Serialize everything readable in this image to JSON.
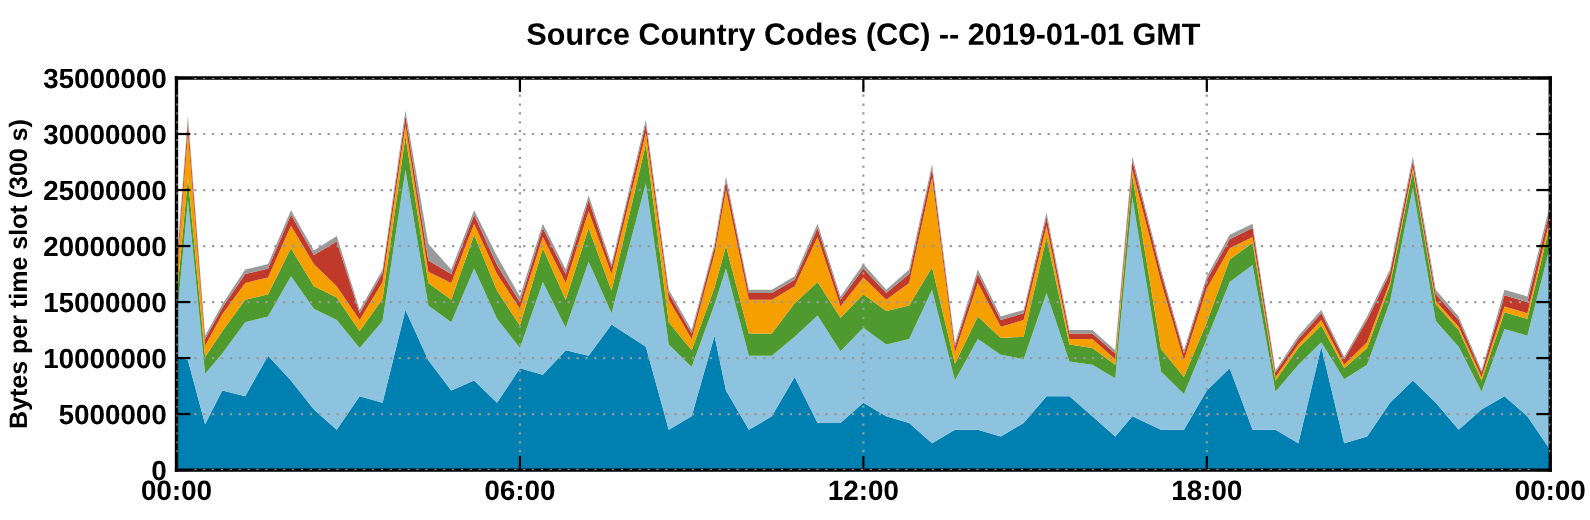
{
  "chart_data": {
    "type": "area",
    "stacked": true,
    "title": "Source Country Codes (CC) -- 2019-01-01 GMT",
    "ylabel": "Bytes per time slot (300 s)",
    "x": [
      0,
      0.2,
      0.5,
      0.8,
      1.2,
      1.6,
      2.0,
      2.4,
      2.8,
      3.2,
      3.6,
      4.0,
      4.4,
      4.8,
      5.2,
      5.6,
      6.0,
      6.4,
      6.8,
      7.2,
      7.6,
      8.2,
      8.6,
      9.0,
      9.4,
      9.6,
      10.0,
      10.4,
      10.8,
      11.2,
      11.6,
      12.0,
      12.4,
      12.8,
      13.2,
      13.6,
      14.0,
      14.4,
      14.8,
      15.2,
      15.6,
      16.0,
      16.4,
      16.7,
      17.2,
      17.6,
      18.0,
      18.4,
      18.8,
      19.2,
      19.6,
      20.0,
      20.4,
      20.8,
      21.2,
      21.6,
      22.0,
      22.4,
      22.8,
      23.2,
      23.6,
      24.0
    ],
    "series": [
      {
        "color": "#0080b0",
        "values": [
          10200000.0,
          9800000.0,
          4100000.0,
          7100000.0,
          6600000.0,
          10200000.0,
          8000000.0,
          5400000.0,
          3600000.0,
          6600000.0,
          6000000.0,
          14300000.0,
          9800000.0,
          7100000.0,
          8000000.0,
          6000000.0,
          9100000.0,
          8500000.0,
          10700000.0,
          10200000.0,
          13000000.0,
          11000000.0,
          3600000.0,
          4800000.0,
          12000000.0,
          7100000.0,
          3600000.0,
          4800000.0,
          8300000.0,
          4200000.0,
          4200000.0,
          6000000.0,
          4800000.0,
          4200000.0,
          2400000.0,
          3600000.0,
          3600000.0,
          3000000.0,
          4200000.0,
          6600000.0,
          6600000.0,
          4800000.0,
          3000000.0,
          4800000.0,
          3600000.0,
          3600000.0,
          7100000.0,
          9100000.0,
          3600000.0,
          3600000.0,
          2400000.0,
          11000000.0,
          2400000.0,
          3000000.0,
          6000000.0,
          8000000.0,
          6000000.0,
          3600000.0,
          5400000.0,
          6600000.0,
          4800000.0,
          1800000.0
        ]
      },
      {
        "color": "#8ec3e0",
        "values": [
          3000000.0,
          14300000.0,
          4500000.0,
          3300000.0,
          6600000.0,
          3500000.0,
          9300000.0,
          9000000.0,
          9800000.0,
          4300000.0,
          7300000.0,
          12500000.0,
          4900000.0,
          6100000.0,
          10000000.0,
          7500000.0,
          1800000.0,
          8300000.0,
          2000000.0,
          8400000.0,
          1000000.0,
          14600000.0,
          7600000.0,
          4400000.0,
          2800000.0,
          10900000.0,
          6600000.0,
          5400000.0,
          3600000.0,
          9600000.0,
          6400000.0,
          6700000.0,
          6400000.0,
          7500000.0,
          13700000.0,
          4400000.0,
          8100000.0,
          7300000.0,
          5700000.0,
          9200000.0,
          3100000.0,
          4600000.0,
          5200000.0,
          19500000.0,
          5200000.0,
          3200000.0,
          4600000.0,
          7700000.0,
          14700000.0,
          3400000.0,
          7000000.0,
          400000.0,
          5700000.0,
          6400000.0,
          9000000.0,
          17200000.0,
          7300000.0,
          7400000.0,
          1600000.0,
          6000000.0,
          7200000.0,
          18200000.0
        ]
      },
      {
        "color": "#4f9a2e",
        "values": [
          2000000.0,
          2000000.0,
          1500000.0,
          2000000.0,
          2000000.0,
          2000000.0,
          2500000.0,
          2000000.0,
          2000000.0,
          1500000.0,
          2000000.0,
          3000000.0,
          2000000.0,
          2000000.0,
          3000000.0,
          2500000.0,
          2000000.0,
          3000000.0,
          2500000.0,
          3000000.0,
          2000000.0,
          3500000.0,
          2000000.0,
          1500000.0,
          1500000.0,
          2000000.0,
          2000000.0,
          2000000.0,
          3000000.0,
          3000000.0,
          3000000.0,
          3000000.0,
          3000000.0,
          3000000.0,
          2000000.0,
          1500000.0,
          2000000.0,
          1500000.0,
          2000000.0,
          5000000.0,
          1500000.0,
          1500000.0,
          1200000.0,
          2000000.0,
          2000000.0,
          1500000.0,
          1500000.0,
          2000000.0,
          2000000.0,
          1000000.0,
          1500000.0,
          1500000.0,
          1000000.0,
          1500000.0,
          1500000.0,
          1500000.0,
          1500000.0,
          1500000.0,
          1000000.0,
          1500000.0,
          1500000.0,
          2000000.0
        ]
      },
      {
        "color": "#f59f00",
        "values": [
          2000000.0,
          4000000.0,
          1000000.0,
          1500000.0,
          1500000.0,
          1500000.0,
          2000000.0,
          2000000.0,
          1000000.0,
          1000000.0,
          1500000.0,
          1000000.0,
          1000000.0,
          1500000.0,
          1000000.0,
          1500000.0,
          1500000.0,
          1000000.0,
          1500000.0,
          1500000.0,
          1500000.0,
          1000000.0,
          2000000.0,
          1000000.0,
          3000000.0,
          5000000.0,
          3000000.0,
          3000000.0,
          1500000.0,
          4000000.0,
          1000000.0,
          1500000.0,
          1000000.0,
          2000000.0,
          8000000.0,
          1000000.0,
          3000000.0,
          1000000.0,
          1500000.0,
          1000000.0,
          500000.0,
          800000.0,
          500000.0,
          500000.0,
          6000000.0,
          1500000.0,
          3000000.0,
          1000000.0,
          500000.0,
          300000.0,
          300000.0,
          500000.0,
          300000.0,
          500000.0,
          300000.0,
          300000.0,
          300000.0,
          300000.0,
          300000.0,
          500000.0,
          500000.0,
          500000.0
        ]
      },
      {
        "color": "#c0392b",
        "values": [
          800000.0,
          1000000.0,
          600000.0,
          600000.0,
          800000.0,
          800000.0,
          1000000.0,
          800000.0,
          4000000.0,
          600000.0,
          800000.0,
          800000.0,
          1000000.0,
          800000.0,
          800000.0,
          800000.0,
          600000.0,
          800000.0,
          800000.0,
          1000000.0,
          600000.0,
          800000.0,
          600000.0,
          500000.0,
          600000.0,
          800000.0,
          600000.0,
          600000.0,
          600000.0,
          800000.0,
          600000.0,
          800000.0,
          600000.0,
          800000.0,
          800000.0,
          500000.0,
          800000.0,
          600000.0,
          600000.0,
          800000.0,
          500000.0,
          500000.0,
          500000.0,
          800000.0,
          800000.0,
          600000.0,
          800000.0,
          800000.0,
          800000.0,
          400000.0,
          500000.0,
          600000.0,
          500000.0,
          2000000.0,
          800000.0,
          600000.0,
          600000.0,
          600000.0,
          400000.0,
          1000000.0,
          1000000.0,
          800000.0
        ]
      },
      {
        "color": "#9a9a9a",
        "values": [
          400000.0,
          500000.0,
          300000.0,
          300000.0,
          400000.0,
          400000.0,
          400000.0,
          400000.0,
          500000.0,
          300000.0,
          300000.0,
          500000.0,
          1500000.0,
          400000.0,
          400000.0,
          800000.0,
          500000.0,
          400000.0,
          400000.0,
          400000.0,
          300000.0,
          400000.0,
          300000.0,
          300000.0,
          300000.0,
          400000.0,
          300000.0,
          300000.0,
          300000.0,
          400000.0,
          300000.0,
          400000.0,
          300000.0,
          400000.0,
          400000.0,
          300000.0,
          400000.0,
          300000.0,
          300000.0,
          400000.0,
          300000.0,
          300000.0,
          300000.0,
          400000.0,
          300000.0,
          300000.0,
          300000.0,
          400000.0,
          400000.0,
          200000.0,
          300000.0,
          300000.0,
          200000.0,
          300000.0,
          300000.0,
          400000.0,
          400000.0,
          300000.0,
          200000.0,
          500000.0,
          500000.0,
          500000.0
        ]
      }
    ],
    "xlim": [
      0,
      24
    ],
    "xticks": [
      {
        "value": 0,
        "label": "00:00"
      },
      {
        "value": 6,
        "label": "06:00"
      },
      {
        "value": 12,
        "label": "12:00"
      },
      {
        "value": 18,
        "label": "18:00"
      },
      {
        "value": 24,
        "label": "00:00"
      }
    ],
    "ylim": [
      0,
      35000000
    ],
    "yticks": [
      0,
      5000000,
      10000000,
      15000000,
      20000000,
      25000000,
      30000000,
      35000000
    ],
    "grid": true
  }
}
